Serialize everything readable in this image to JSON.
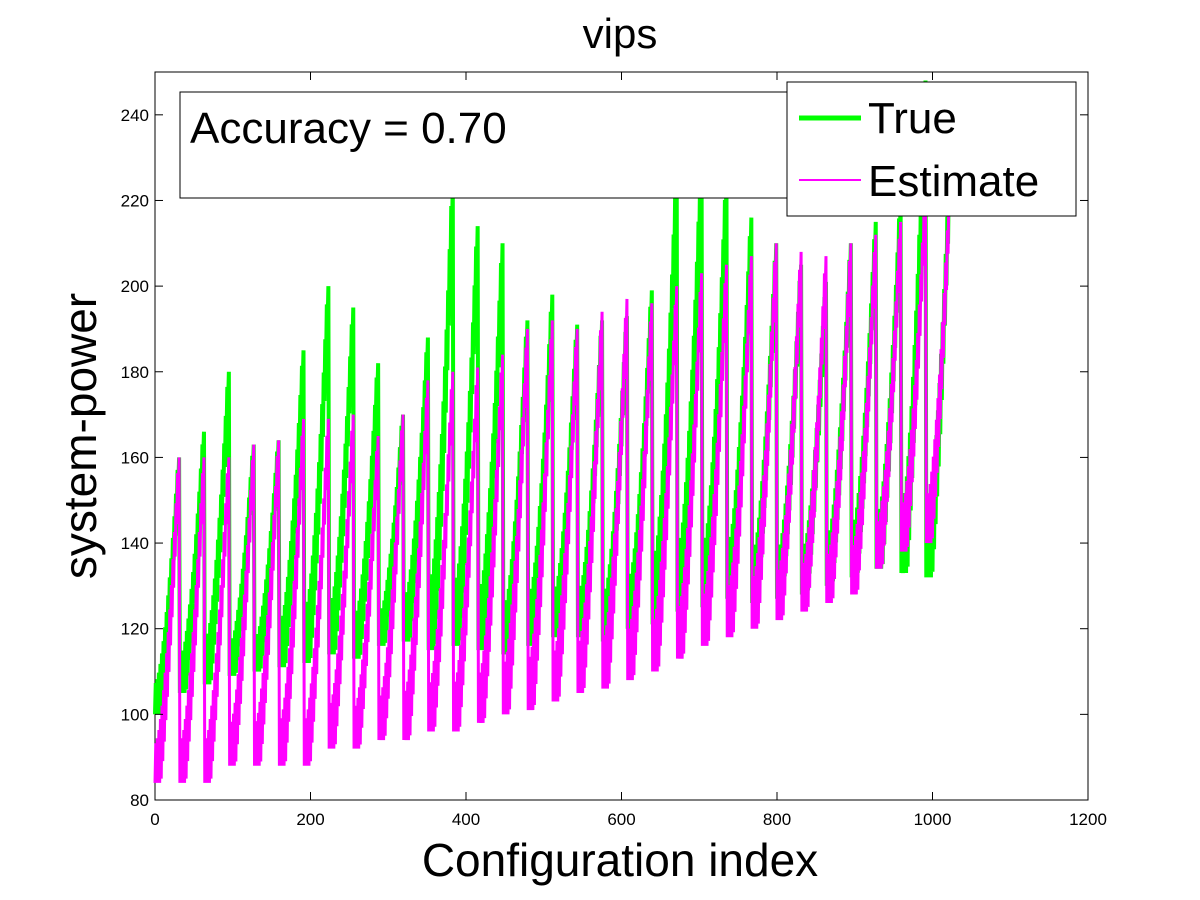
{
  "chart_data": {
    "type": "line",
    "title": "vips",
    "xlabel": "Configuration index",
    "ylabel": "system-power",
    "xlim": [
      0,
      1200
    ],
    "ylim": [
      80,
      250
    ],
    "xticks": [
      0,
      200,
      400,
      600,
      800,
      1000,
      1200
    ],
    "yticks": [
      80,
      100,
      120,
      140,
      160,
      180,
      200,
      220,
      240
    ],
    "grid": false,
    "legend_position": "top-right",
    "annotation": "Accuracy = 0.70",
    "x_count": 1024,
    "cycle_length": 32,
    "series": [
      {
        "name": "True",
        "color": "#00ff00",
        "cycle_min": [
          100,
          105,
          107,
          109,
          110,
          111,
          112,
          114,
          113,
          116,
          117,
          115,
          116,
          115,
          114,
          116,
          118,
          118,
          117,
          120,
          121,
          124,
          125,
          127,
          126,
          127,
          128,
          130,
          132,
          134,
          133,
          132
        ],
        "cycle_max": [
          160,
          166,
          180,
          163,
          164,
          185,
          200,
          195,
          182,
          170,
          188,
          224,
          214,
          210,
          192,
          198,
          191,
          192,
          193,
          199,
          227,
          230,
          225,
          216,
          210,
          205,
          201,
          210,
          215,
          220,
          248,
          230
        ]
      },
      {
        "name": "Estimate",
        "color": "#ff00ff",
        "cycle_min": [
          84,
          84,
          84,
          88,
          88,
          88,
          88,
          92,
          92,
          94,
          94,
          96,
          96,
          98,
          100,
          101,
          103,
          105,
          106,
          108,
          110,
          113,
          116,
          118,
          120,
          122,
          124,
          126,
          128,
          134,
          138,
          140
        ],
        "cycle_max": [
          160,
          160,
          160,
          163,
          164,
          169,
          169,
          170,
          165,
          170,
          178,
          180,
          181,
          184,
          190,
          192,
          190,
          194,
          197,
          196,
          200,
          203,
          205,
          207,
          210,
          208,
          207,
          210,
          212,
          215,
          222,
          225
        ]
      }
    ]
  }
}
